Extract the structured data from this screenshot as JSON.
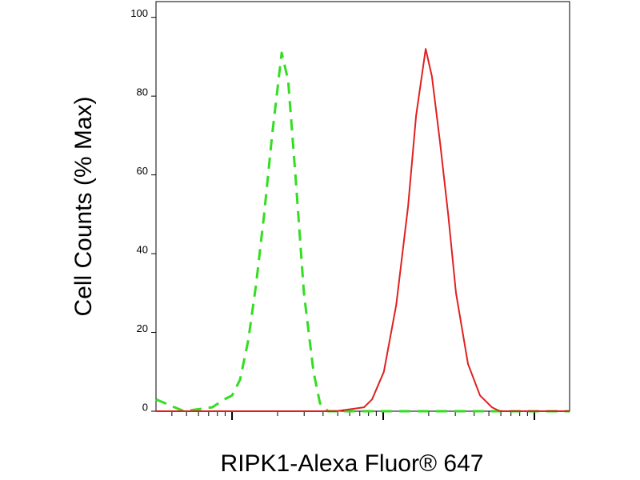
{
  "chart_data": {
    "type": "line",
    "xlabel": "RIPK1-Alexa Fluor® 647",
    "ylabel": "Cell Counts (% Max)",
    "xscale": "log",
    "xlim": [
      3.14,
      1710
    ],
    "xticks": [
      10,
      100,
      1000
    ],
    "xminor_ticks": [
      4,
      5,
      6,
      7,
      8,
      9,
      20,
      30,
      40,
      50,
      60,
      70,
      80,
      90,
      200,
      300,
      400,
      500,
      600,
      700,
      800,
      900
    ],
    "ylim": [
      0,
      104
    ],
    "yticks": [
      0,
      20,
      40,
      60,
      80,
      100
    ],
    "series": [
      {
        "color": "#33dd22",
        "dashed": true,
        "x": [
          3.14,
          4.8,
          7.4,
          8.9,
          10,
          11.3,
          12.8,
          14.4,
          16.3,
          18.4,
          21.3,
          23.5,
          26.5,
          29.9,
          34.6,
          38.2,
          43.2,
          55.1,
          437,
          1710
        ],
        "values": [
          3,
          0,
          1,
          3,
          4,
          8,
          18,
          32,
          50,
          70,
          91,
          84,
          58,
          30,
          10,
          2,
          0,
          0,
          0,
          0
        ]
      },
      {
        "color": "#e02020",
        "dashed": false,
        "x": [
          3.14,
          48.7,
          74.6,
          84.4,
          101,
          122,
          146,
          165,
          191,
          210,
          238,
          269,
          303,
          364,
          437,
          524,
          592,
          1710
        ],
        "values": [
          0,
          0,
          1,
          3,
          10,
          27,
          52,
          75,
          92,
          85,
          68,
          50,
          30,
          12,
          4,
          1,
          0,
          0
        ]
      }
    ]
  }
}
